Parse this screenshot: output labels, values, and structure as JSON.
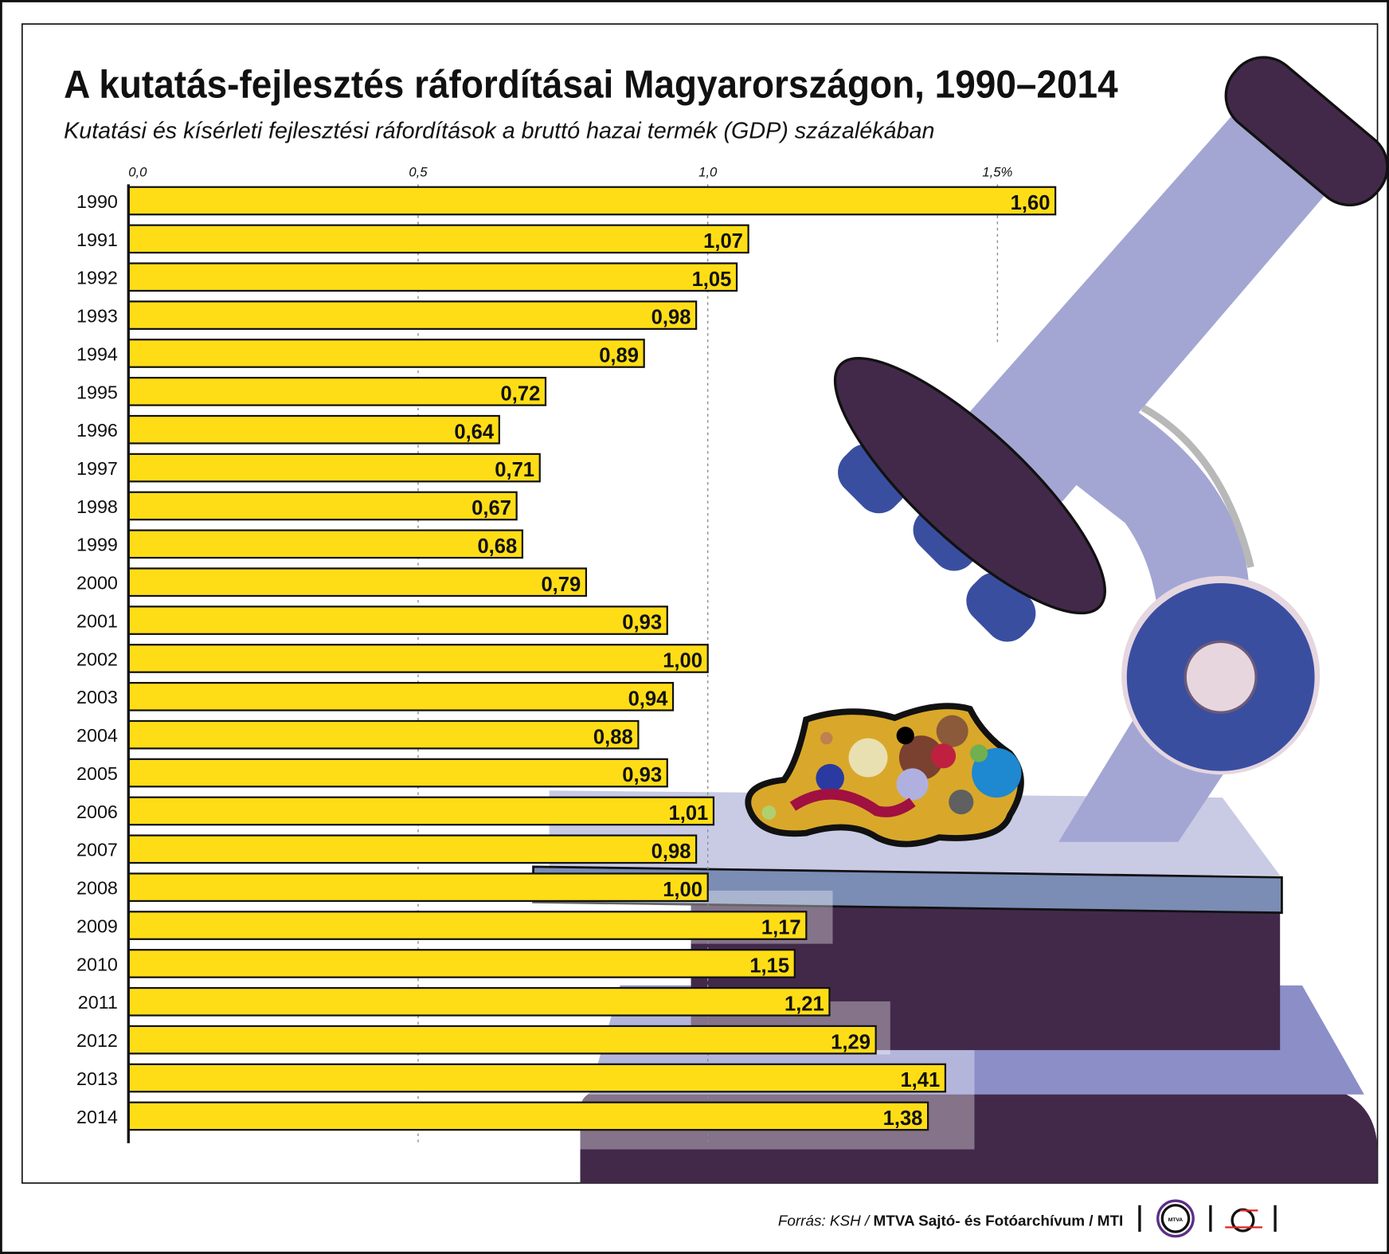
{
  "title": "A kutatás-fejlesztés ráfordításai Magyarországon, 1990–2014",
  "subtitle": "Kutatási és kísérleti fejlesztési ráfordítások a bruttó hazai termék (GDP) százalékában",
  "chart_data": {
    "type": "bar",
    "orientation": "horizontal",
    "categories": [
      "1990",
      "1991",
      "1992",
      "1993",
      "1994",
      "1995",
      "1996",
      "1997",
      "1998",
      "1999",
      "2000",
      "2001",
      "2002",
      "2003",
      "2004",
      "2005",
      "2006",
      "2007",
      "2008",
      "2009",
      "2010",
      "2011",
      "2012",
      "2013",
      "2014"
    ],
    "values": [
      1.6,
      1.07,
      1.05,
      0.98,
      0.89,
      0.72,
      0.64,
      0.71,
      0.67,
      0.68,
      0.79,
      0.93,
      1.0,
      0.94,
      0.88,
      0.93,
      1.01,
      0.98,
      1.0,
      1.17,
      1.15,
      1.21,
      1.29,
      1.41,
      1.38
    ],
    "value_labels": [
      "1,60",
      "1,07",
      "1,05",
      "0,98",
      "0,89",
      "0,72",
      "0,64",
      "0,71",
      "0,67",
      "0,68",
      "0,79",
      "0,93",
      "1,00",
      "0,94",
      "0,88",
      "0,93",
      "1,01",
      "0,98",
      "1,00",
      "1,17",
      "1,15",
      "1,21",
      "1,29",
      "1,41",
      "1,38"
    ],
    "xticks": [
      0,
      0.5,
      1.0,
      1.5
    ],
    "xtick_labels": [
      "0,0",
      "0,5",
      "1,0",
      "1,5%"
    ],
    "xlim": [
      0,
      1.6
    ],
    "grid": "dotted vertical",
    "bar_color": "#ffdd16"
  },
  "footer": {
    "source_prefix": "Forrás: KSH / ",
    "source_bold": "MTVA Sajtó- és Fotóarchívum / MTI",
    "logo1_text": "MTVA"
  },
  "colors": {
    "dark": "#42294a",
    "lavender": "#a3a6d3",
    "blue": "#3a4ea0",
    "bar": "#ffdd16"
  }
}
